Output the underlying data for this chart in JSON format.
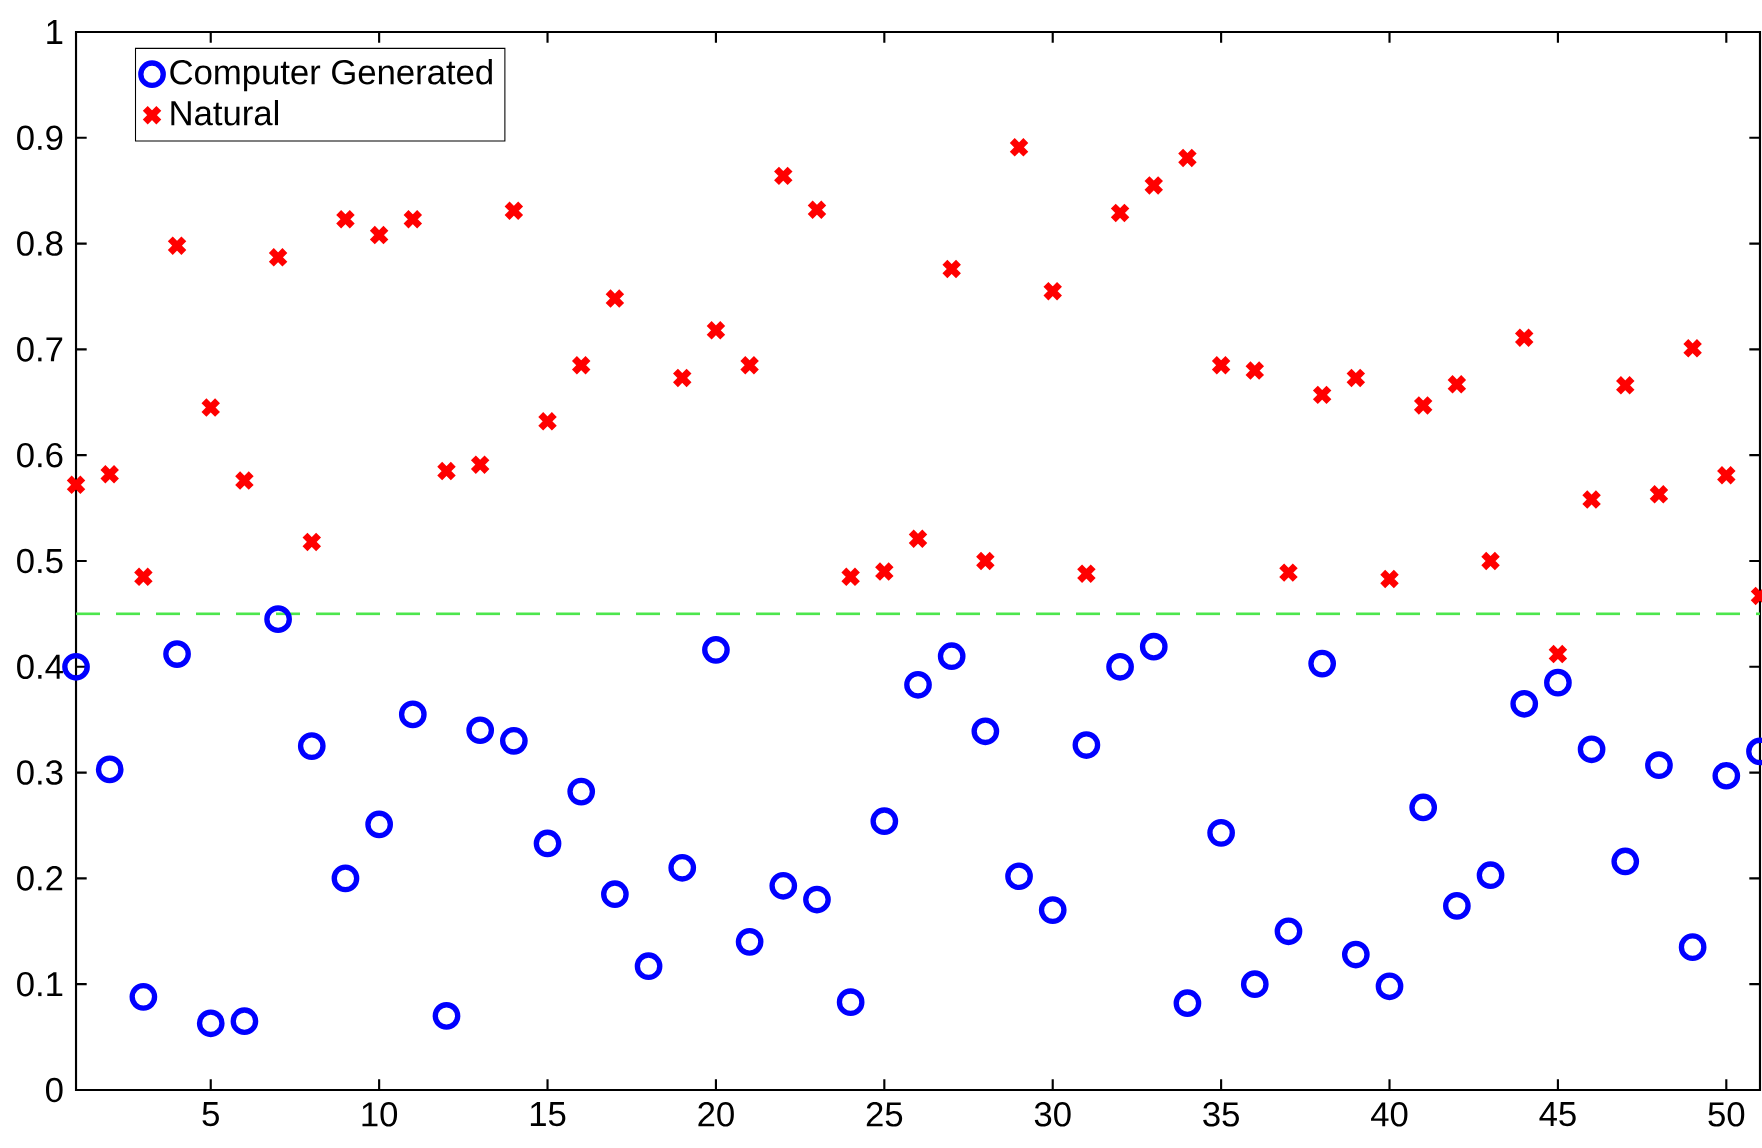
{
  "chart_data": {
    "type": "scatter",
    "x": [
      1,
      2,
      3,
      4,
      5,
      6,
      7,
      8,
      9,
      10,
      11,
      12,
      13,
      14,
      15,
      16,
      17,
      18,
      19,
      20,
      21,
      22,
      23,
      24,
      25,
      26,
      27,
      28,
      29,
      30,
      31,
      32,
      33,
      34,
      35,
      36,
      37,
      38,
      39,
      40,
      41,
      42,
      43,
      44,
      45,
      46,
      47,
      48,
      49,
      50,
      51
    ],
    "series": [
      {
        "name": "Computer Generated",
        "color": "#0000ff",
        "marker": "circle",
        "values": [
          0.4,
          0.303,
          0.088,
          0.412,
          0.063,
          0.065,
          0.445,
          0.325,
          0.2,
          0.251,
          0.355,
          0.07,
          0.34,
          0.33,
          0.233,
          0.282,
          0.185,
          0.117,
          0.21,
          0.416,
          0.14,
          0.193,
          0.18,
          0.083,
          0.254,
          0.383,
          0.41,
          0.339,
          0.202,
          0.17,
          0.326,
          0.4,
          0.419,
          0.082,
          0.243,
          0.1,
          0.15,
          0.403,
          0.128,
          0.098,
          0.267,
          0.174,
          0.203,
          0.365,
          0.385,
          0.322,
          0.216,
          0.307,
          0.135,
          0.297,
          0.32
        ]
      },
      {
        "name": "Natural",
        "color": "#ff0000",
        "marker": "cross",
        "values": [
          0.572,
          0.582,
          0.485,
          0.798,
          0.645,
          0.576,
          0.787,
          0.518,
          0.823,
          0.808,
          0.823,
          0.585,
          0.591,
          0.831,
          0.632,
          0.685,
          0.748,
          null,
          0.673,
          0.718,
          0.685,
          0.864,
          0.832,
          0.485,
          0.49,
          0.521,
          0.776,
          0.5,
          0.891,
          0.755,
          0.488,
          0.829,
          0.855,
          0.881,
          0.685,
          0.68,
          0.489,
          0.657,
          0.673,
          0.483,
          0.647,
          0.667,
          0.5,
          0.711,
          0.412,
          0.558,
          0.666,
          0.563,
          0.701,
          0.581,
          0.467
        ]
      }
    ],
    "xlim": [
      1,
      51
    ],
    "ylim": [
      0,
      1
    ],
    "xticks": [
      5,
      10,
      15,
      20,
      25,
      30,
      35,
      40,
      45,
      50
    ],
    "yticks": [
      0,
      0.1,
      0.2,
      0.3,
      0.4,
      0.5,
      0.6,
      0.7,
      0.8,
      0.9,
      1
    ],
    "ref_lines": [
      {
        "axis": "y",
        "value": 0.45,
        "color": "#4ce64c",
        "line_style": "dashed"
      }
    ],
    "grid": false,
    "legend": "top left"
  }
}
